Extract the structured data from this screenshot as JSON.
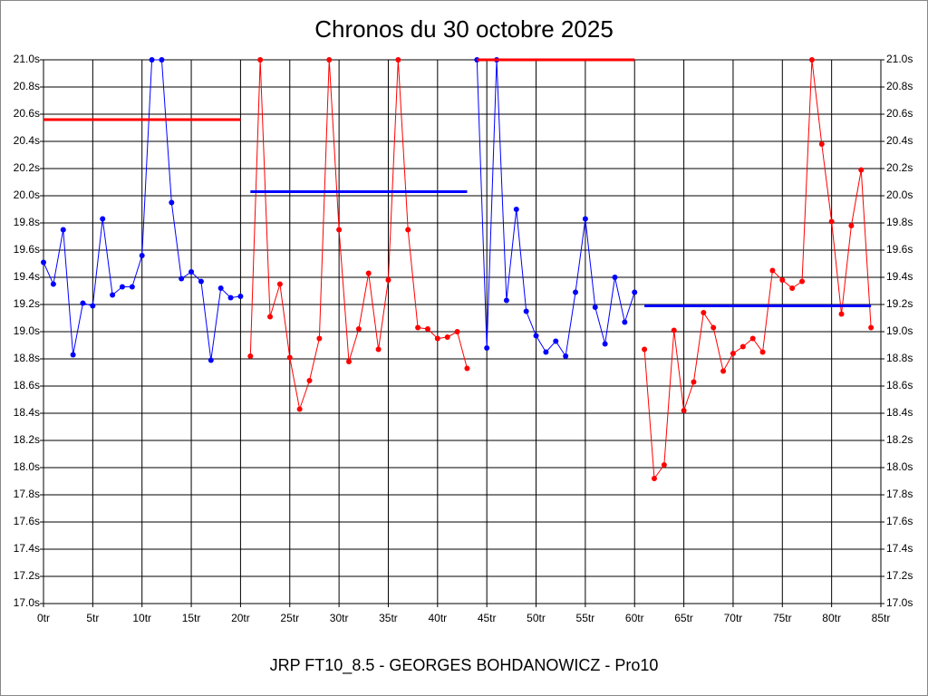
{
  "chart_data": {
    "type": "line",
    "title": "Chronos du 30 octobre 2025",
    "subtitle": "JRP FT10_8.5 - GEORGES BOHDANOWICZ - Pro10",
    "grid": true,
    "xlim": [
      0,
      85
    ],
    "ylim": [
      17.0,
      21.0
    ],
    "xticks": [
      {
        "value": 0,
        "label": "0tr"
      },
      {
        "value": 5,
        "label": "5tr"
      },
      {
        "value": 10,
        "label": "10tr"
      },
      {
        "value": 15,
        "label": "15tr"
      },
      {
        "value": 20,
        "label": "20tr"
      },
      {
        "value": 25,
        "label": "25tr"
      },
      {
        "value": 30,
        "label": "30tr"
      },
      {
        "value": 35,
        "label": "35tr"
      },
      {
        "value": 40,
        "label": "40tr"
      },
      {
        "value": 45,
        "label": "45tr"
      },
      {
        "value": 50,
        "label": "50tr"
      },
      {
        "value": 55,
        "label": "55tr"
      },
      {
        "value": 60,
        "label": "60tr"
      },
      {
        "value": 65,
        "label": "65tr"
      },
      {
        "value": 70,
        "label": "70tr"
      },
      {
        "value": 75,
        "label": "75tr"
      },
      {
        "value": 80,
        "label": "80tr"
      },
      {
        "value": 85,
        "label": "85tr"
      }
    ],
    "yticks": [
      {
        "value": 17.0,
        "label": "17.0s"
      },
      {
        "value": 17.2,
        "label": "17.2s"
      },
      {
        "value": 17.4,
        "label": "17.4s"
      },
      {
        "value": 17.6,
        "label": "17.6s"
      },
      {
        "value": 17.8,
        "label": "17.8s"
      },
      {
        "value": 18.0,
        "label": "18.0s"
      },
      {
        "value": 18.2,
        "label": "18.2s"
      },
      {
        "value": 18.4,
        "label": "18.4s"
      },
      {
        "value": 18.6,
        "label": "18.6s"
      },
      {
        "value": 18.8,
        "label": "18.8s"
      },
      {
        "value": 19.0,
        "label": "19.0s"
      },
      {
        "value": 19.2,
        "label": "19.2s"
      },
      {
        "value": 19.4,
        "label": "19.4s"
      },
      {
        "value": 19.6,
        "label": "19.6s"
      },
      {
        "value": 19.8,
        "label": "19.8s"
      },
      {
        "value": 20.0,
        "label": "20.0s"
      },
      {
        "value": 20.2,
        "label": "20.2s"
      },
      {
        "value": 20.4,
        "label": "20.4s"
      },
      {
        "value": 20.6,
        "label": "20.6s"
      },
      {
        "value": 20.8,
        "label": "20.8s"
      },
      {
        "value": 21.0,
        "label": "21.0s"
      }
    ],
    "series": [
      {
        "color": "#0000ff",
        "x": [
          0,
          1,
          2,
          3,
          4,
          5,
          6,
          7,
          8,
          9,
          10,
          11,
          12,
          13,
          14,
          15,
          16,
          17,
          18,
          19,
          20
        ],
        "values": [
          19.51,
          19.35,
          19.75,
          18.83,
          19.21,
          19.19,
          19.83,
          19.27,
          19.33,
          19.33,
          19.56,
          21.0,
          21.0,
          19.95,
          19.39,
          19.44,
          19.37,
          18.79,
          19.32,
          19.25,
          19.26
        ]
      },
      {
        "color": "#ff0000",
        "x": [
          21,
          22,
          23,
          24,
          25,
          26,
          27,
          28,
          29,
          30,
          31,
          32,
          33,
          34,
          35,
          36,
          37,
          38,
          39,
          40,
          41,
          42,
          43
        ],
        "values": [
          18.82,
          21.0,
          19.11,
          19.35,
          18.81,
          18.43,
          18.64,
          18.95,
          21.0,
          19.75,
          18.78,
          19.02,
          19.43,
          18.87,
          19.38,
          21.0,
          19.75,
          19.03,
          19.02,
          18.95,
          18.96,
          19.0,
          18.73
        ]
      },
      {
        "color": "#0000ff",
        "x": [
          44,
          45,
          46,
          47,
          48,
          49,
          50,
          51,
          52,
          53,
          54,
          55,
          56,
          57,
          58,
          59,
          60
        ],
        "values": [
          21.0,
          18.88,
          21.0,
          19.23,
          19.9,
          19.15,
          18.97,
          18.85,
          18.93,
          18.82,
          19.29,
          19.83,
          19.18,
          18.91,
          19.4,
          19.07,
          19.29
        ]
      },
      {
        "color": "#ff0000",
        "x": [
          61,
          62,
          63,
          64,
          65,
          66,
          67,
          68,
          69,
          70,
          71,
          72,
          73,
          74,
          75,
          76,
          77,
          78,
          79,
          80,
          81,
          82,
          83,
          84
        ],
        "values": [
          18.87,
          17.92,
          18.02,
          19.01,
          18.42,
          18.63,
          19.14,
          19.03,
          18.71,
          18.84,
          18.89,
          18.95,
          18.85,
          19.45,
          19.38,
          19.32,
          19.37,
          21.0,
          20.38,
          19.81,
          19.13,
          19.78,
          20.19,
          19.03
        ]
      }
    ],
    "averages": [
      {
        "color": "#ff0000",
        "x": [
          0,
          20
        ],
        "value": 20.56
      },
      {
        "color": "#0000ff",
        "x": [
          21,
          43
        ],
        "value": 20.03
      },
      {
        "color": "#ff0000",
        "x": [
          44,
          60
        ],
        "value": 21.0
      },
      {
        "color": "#0000ff",
        "x": [
          61,
          84
        ],
        "value": 19.19
      }
    ]
  }
}
